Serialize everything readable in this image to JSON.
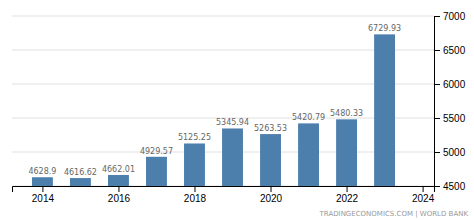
{
  "chart_data": {
    "type": "bar",
    "x": [
      2014,
      2015,
      2016,
      2017,
      2018,
      2019,
      2020,
      2021,
      2022,
      2023
    ],
    "values": [
      4628.9,
      4616.62,
      4662.01,
      4929.57,
      5125.25,
      5345.94,
      5263.53,
      5420.79,
      5480.33,
      6729.93
    ],
    "color": "#4d7fad",
    "xlim": [
      2013.2,
      2024.3
    ],
    "xticks": [
      2014,
      2016,
      2018,
      2020,
      2022,
      2024
    ],
    "ylim": [
      4500,
      7000
    ],
    "yticks": [
      4500,
      5000,
      5500,
      6000,
      6500,
      7000
    ],
    "grid": true,
    "data_labels": true,
    "annotations": [
      "TRADINGECONOMICS.COM | WORLD BANK"
    ]
  }
}
